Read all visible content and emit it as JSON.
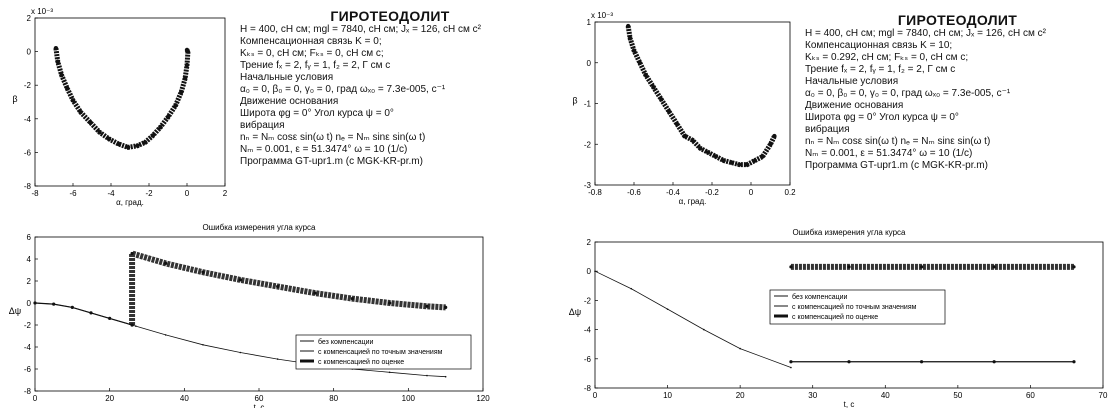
{
  "colors": {
    "axis": "#000000",
    "data": "#111111",
    "grid": "#999999",
    "background": "#ffffff"
  },
  "panels": [
    {
      "info": {
        "title": "ГИРОТЕОДОЛИТ",
        "lines": [
          "H = 400, сН см;   mgl = 7840, сН см;         Jₓ = 126, сН см с²",
          "Компенсационная связь                   K = 0;",
          "Kₖₛ = 0, сН см;                         Fₖₛ = 0, сН см с;",
          "Трение         fₓ = 2,   fᵧ = 1,   f₂ = 2,   Г см с",
          "                        Начальные условия",
          "α₀ = 0,   β₀ = 0,   γ₀ = 0, град    ωₓ₀ = 7.3e-005,  с⁻¹",
          "                         Движение основания",
          "Широта φg = 0°                    Угол курса ψ = 0°",
          "                     вибрация",
          "nₙ = Nₘ cosε sin(ω t)          nₑ = Nₘ sinε sin(ω t)",
          "Nₘ = 0.001,                ε = 51.3474°        ω = 10 (1/с)",
          "Программа GT-upr1.m (с MGK-KR-pr.m)"
        ]
      },
      "top_chart": {
        "type": "scatter",
        "xlabel": "α, град.",
        "ylabel": "β",
        "y_multiplier": "x 10⁻³",
        "xlim": [
          -8,
          2
        ],
        "ylim": [
          -8,
          2
        ],
        "xticks": [
          "-8",
          "-6",
          "-4",
          "-2",
          "0",
          "2"
        ],
        "yticks": [
          "2",
          "0",
          "-2",
          "-4",
          "-6",
          "-8"
        ],
        "series": [
          {
            "x": [
              -6.9,
              -6.8,
              -6.6,
              -6.3,
              -6.0,
              -5.6,
              -5.1,
              -4.6,
              -4.1,
              -3.6,
              -3.1,
              -2.6,
              -2.2,
              -1.8,
              -1.4,
              -1.0,
              -0.6,
              -0.3,
              -0.1,
              0.0,
              0.05,
              0.0
            ],
            "y": [
              0.2,
              -0.6,
              -1.4,
              -2.2,
              -2.9,
              -3.6,
              -4.2,
              -4.8,
              -5.2,
              -5.5,
              -5.7,
              -5.6,
              -5.4,
              -5.0,
              -4.5,
              -3.9,
              -3.2,
              -2.4,
              -1.6,
              -0.8,
              0.0,
              0.1
            ]
          }
        ]
      },
      "bottom_chart": {
        "type": "line",
        "title": "Ошибка измерения угла курса",
        "xlabel": "t, с",
        "ylabel": "Δψ",
        "xlim": [
          0,
          120
        ],
        "ylim": [
          -8,
          6
        ],
        "xticks": [
          "0",
          "20",
          "40",
          "60",
          "80",
          "100",
          "120"
        ],
        "yticks": [
          "6",
          "4",
          "2",
          "0",
          "-2",
          "-4",
          "-6",
          "-8"
        ],
        "legend_position": "lower-right",
        "legend": [
          "без компенсации",
          "с компенсацией по точным значениям",
          "с компенсацией по оценке"
        ],
        "series": [
          {
            "name": "без компенсации",
            "x": [
              0,
              5,
              10,
              15,
              20,
              27,
              35,
              45,
              55,
              65,
              75,
              85,
              95,
              105,
              110
            ],
            "y": [
              0.0,
              -0.1,
              -0.4,
              -0.9,
              -1.4,
              -2.1,
              -2.9,
              -3.8,
              -4.5,
              -5.1,
              -5.6,
              -6.0,
              -6.3,
              -6.6,
              -6.7
            ]
          },
          {
            "name": "с компенсацией по точным значениям",
            "x": [
              0,
              5,
              10,
              15,
              20,
              26
            ],
            "y": [
              0.0,
              -0.1,
              -0.4,
              -0.9,
              -1.4,
              -2.0
            ]
          },
          {
            "name": "с компенсацией по оценке",
            "x": [
              26,
              26,
              35,
              45,
              55,
              65,
              75,
              85,
              95,
              105,
              110
            ],
            "y": [
              -2.0,
              4.5,
              3.6,
              2.8,
              2.1,
              1.5,
              0.9,
              0.4,
              0.0,
              -0.3,
              -0.4
            ]
          }
        ]
      }
    },
    {
      "info": {
        "title": "ГИРОТЕОДОЛИТ",
        "lines": [
          "H = 400, сН см;   mgl = 7840, сН см;         Jₓ = 126, сН см с²",
          "Компенсационная связь                   K = 10;",
          "Kₖₛ = 0.292, сН см;                   Fₖₛ = 0, сН см с;",
          "Трение         fₓ = 2,   fᵧ = 1,   f₂ = 2,   Г см с",
          "                        Начальные условия",
          "α₀ = 0,   β₀ = 0,   γ₀ = 0, град    ωₓ₀ = 7.3e-005,  с⁻¹",
          "                         Движение основания",
          "Широта φg = 0°                    Угол курса ψ = 0°",
          "                     вибрация",
          "nₙ = Nₘ cosε sin(ω t)          nₑ = Nₘ sinε sin(ω t)",
          "Nₘ = 0.001,                ε = 51.3474°        ω = 10 (1/с)",
          "Программа GT-upr1.m (с MGK-KR-pr.m)"
        ]
      },
      "top_chart": {
        "type": "scatter",
        "xlabel": "α, град.",
        "ylabel": "β",
        "y_multiplier": "x 10⁻³",
        "xlim": [
          -0.8,
          0.2
        ],
        "ylim": [
          -3,
          1
        ],
        "xticks": [
          "-0.8",
          "-0.6",
          "-0.4",
          "-0.2",
          "0",
          "0.2"
        ],
        "yticks": [
          "1",
          "0",
          "-1",
          "-2",
          "-3"
        ],
        "series": [
          {
            "x": [
              -0.63,
              -0.62,
              -0.6,
              -0.57,
              -0.54,
              -0.5,
              -0.46,
              -0.42,
              -0.38,
              -0.34,
              -0.3,
              -0.26,
              -0.22,
              -0.18,
              -0.14,
              -0.1,
              -0.06,
              -0.02,
              0.02,
              0.06,
              0.1,
              0.12
            ],
            "y": [
              0.9,
              0.6,
              0.3,
              0.0,
              -0.3,
              -0.6,
              -0.9,
              -1.2,
              -1.5,
              -1.8,
              -1.9,
              -2.1,
              -2.2,
              -2.3,
              -2.4,
              -2.45,
              -2.5,
              -2.5,
              -2.4,
              -2.3,
              -2.0,
              -1.8
            ]
          }
        ]
      },
      "bottom_chart": {
        "type": "line",
        "title": "Ошибка измерения угла курса",
        "xlabel": "t, с",
        "ylabel": "Δψ",
        "xlim": [
          0,
          70
        ],
        "ylim": [
          -8,
          2
        ],
        "xticks": [
          "0",
          "10",
          "20",
          "30",
          "40",
          "50",
          "60",
          "70"
        ],
        "yticks": [
          "2",
          "0",
          "-2",
          "-4",
          "-6",
          "-8"
        ],
        "legend_position": "center",
        "legend": [
          "без компенсации",
          "с компенсацией по точным значениям",
          "с компенсацией по оценке"
        ],
        "series": [
          {
            "name": "без компенсации",
            "x": [
              0,
              5,
              10,
              15,
              20,
              27
            ],
            "y": [
              0.0,
              -1.2,
              -2.6,
              -4.0,
              -5.3,
              -6.6
            ]
          },
          {
            "name": "с компенсацией по точным значениям",
            "x": [
              27,
              35,
              45,
              55,
              66
            ],
            "y": [
              -6.2,
              -6.2,
              -6.2,
              -6.2,
              -6.2
            ]
          },
          {
            "name": "с компенсацией по оценке",
            "x": [
              27,
              35,
              45,
              55,
              66
            ],
            "y": [
              0.3,
              0.3,
              0.3,
              0.3,
              0.3
            ]
          }
        ]
      }
    }
  ]
}
